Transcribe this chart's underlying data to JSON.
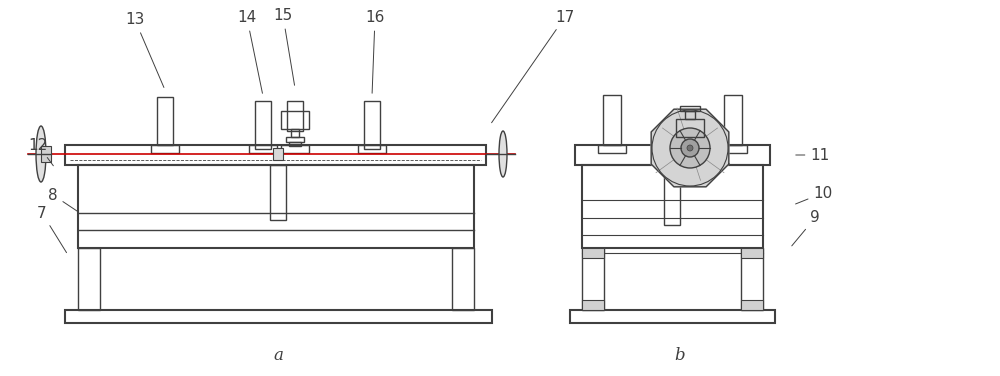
{
  "bg_color": "#ffffff",
  "line_color": "#404040",
  "fig_width": 10.0,
  "fig_height": 3.76,
  "lc": "#404040",
  "lc_dim": "#888888",
  "label_a": "a",
  "label_b": "b"
}
